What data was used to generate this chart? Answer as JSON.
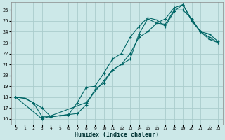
{
  "xlabel": "Humidex (Indice chaleur)",
  "bg_color": "#cce8e8",
  "grid_color": "#aacccc",
  "line_color": "#006666",
  "xlim": [
    -0.5,
    23.5
  ],
  "ylim": [
    15.5,
    26.7
  ],
  "line1_x": [
    0,
    1,
    2,
    3,
    4,
    5,
    6,
    7,
    8,
    9,
    10,
    11,
    12,
    13,
    14,
    15,
    16,
    17,
    18,
    19,
    20,
    21,
    22,
    23
  ],
  "line1_y": [
    18.0,
    17.9,
    17.5,
    17.0,
    16.2,
    16.3,
    16.4,
    16.5,
    17.3,
    18.7,
    19.3,
    20.5,
    21.0,
    21.5,
    23.8,
    25.2,
    24.8,
    24.7,
    26.0,
    26.0,
    25.2,
    24.0,
    23.8,
    23.1
  ],
  "line2_x": [
    0,
    1,
    2,
    3,
    4,
    5,
    6,
    7,
    8,
    9,
    10,
    11,
    12,
    13,
    14,
    15,
    16,
    17,
    18,
    19,
    20,
    21,
    22,
    23
  ],
  "line2_y": [
    18.0,
    17.9,
    17.5,
    16.2,
    16.2,
    16.3,
    16.4,
    17.5,
    18.9,
    19.0,
    20.2,
    21.5,
    22.0,
    23.5,
    24.5,
    25.3,
    25.1,
    24.5,
    25.9,
    26.5,
    25.0,
    24.0,
    23.5,
    23.0
  ],
  "line3_x": [
    0,
    3,
    8,
    10,
    11,
    12,
    13,
    14,
    15,
    16,
    17,
    18,
    19,
    20,
    21,
    22,
    23
  ],
  "line3_y": [
    18.0,
    16.0,
    17.5,
    19.5,
    20.5,
    21.0,
    22.0,
    23.5,
    24.0,
    24.8,
    25.2,
    26.2,
    26.5,
    25.1,
    24.0,
    23.3,
    23.0
  ],
  "xticks": [
    0,
    1,
    2,
    3,
    4,
    5,
    6,
    7,
    8,
    9,
    10,
    11,
    12,
    13,
    14,
    15,
    16,
    17,
    18,
    19,
    20,
    21,
    22,
    23
  ],
  "yticks": [
    16,
    17,
    18,
    19,
    20,
    21,
    22,
    23,
    24,
    25,
    26
  ]
}
